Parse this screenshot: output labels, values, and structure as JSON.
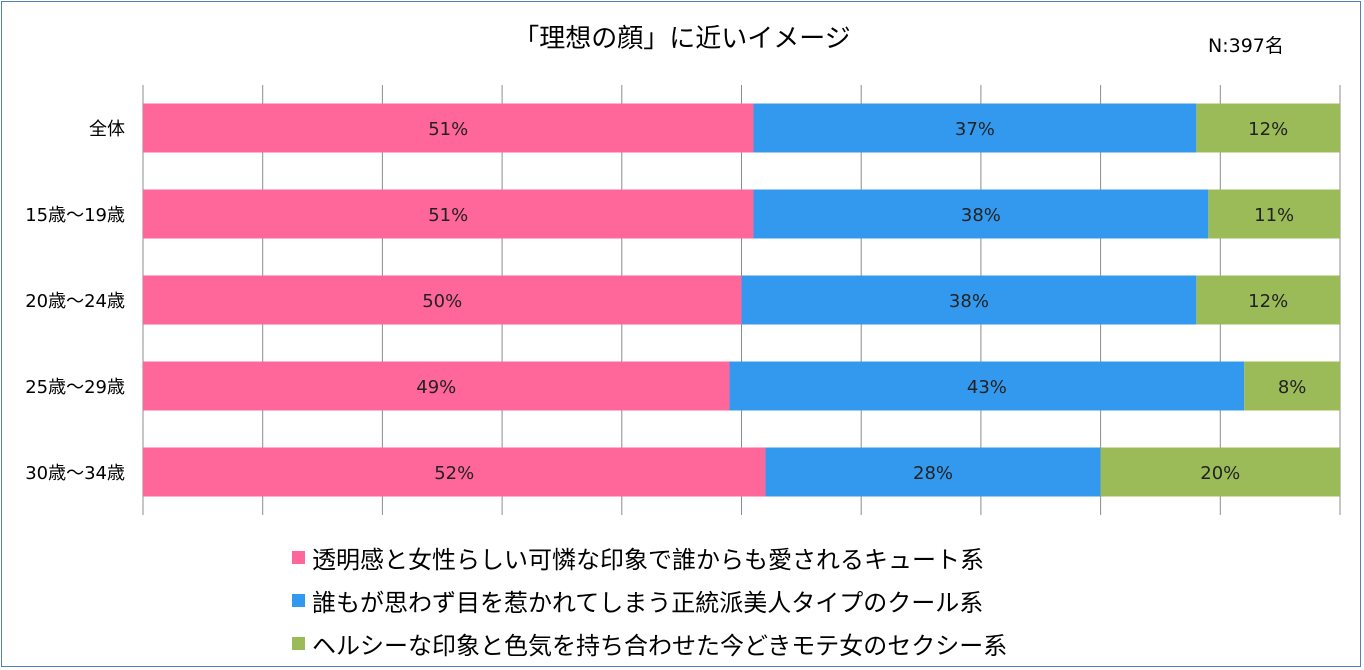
{
  "chart_data": {
    "type": "bar",
    "orientation": "horizontal",
    "stacked": true,
    "title": "「理想の顔」に近いイメージ",
    "note": "N:397名",
    "categories": [
      "全体",
      "15歳〜19歳",
      "20歳〜24歳",
      "25歳〜29歳",
      "30歳〜34歳"
    ],
    "series": [
      {
        "name": "透明感と女性らしい可憐な印象で誰からも愛されるキュート系",
        "color": "#ff6699",
        "values": [
          51,
          51,
          50,
          49,
          52
        ],
        "labels": [
          "51%",
          "51%",
          "50%",
          "49%",
          "52%"
        ]
      },
      {
        "name": "誰もが思わず目を惹かれてしまう正統派美人タイプのクール系",
        "color": "#3399ee",
        "values": [
          37,
          38,
          38,
          43,
          28
        ],
        "labels": [
          "37%",
          "38%",
          "38%",
          "43%",
          "28%"
        ]
      },
      {
        "name": "ヘルシーな印象と色気を持ち合わせた今どきモテ女のセクシー系",
        "color": "#9bbb59",
        "values": [
          12,
          11,
          12,
          8,
          20
        ],
        "labels": [
          "12%",
          "11%",
          "12%",
          "8%",
          "20%"
        ]
      }
    ],
    "xlim": [
      0,
      100
    ],
    "grid": true,
    "legend_position": "bottom"
  }
}
